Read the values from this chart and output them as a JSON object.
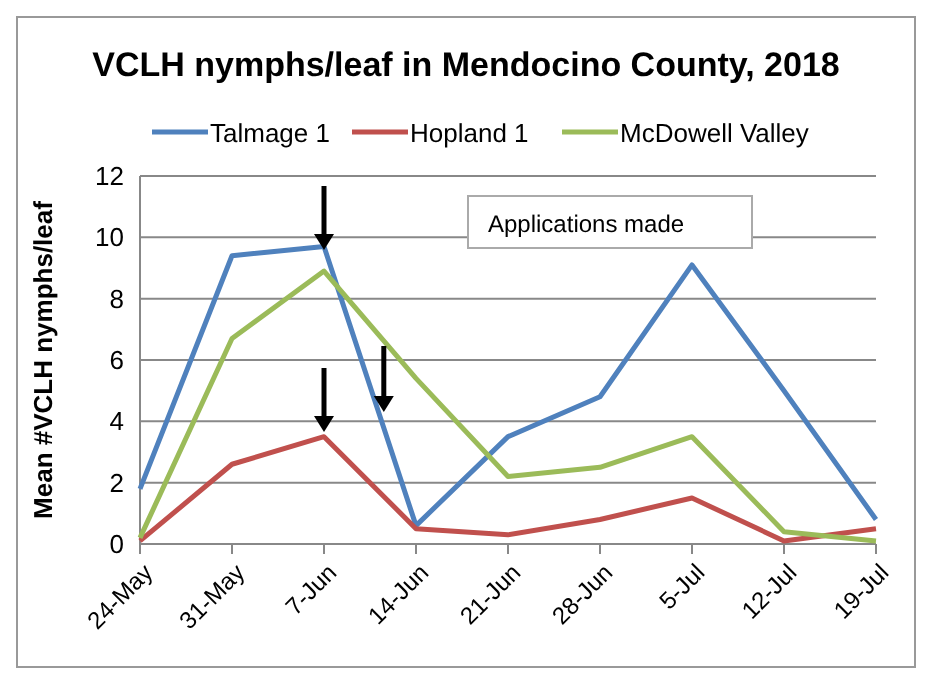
{
  "chart_data": {
    "type": "line",
    "title": "VCLH nymphs/leaf in Mendocino County, 2018",
    "ylabel": "Mean  #VCLH nymphs/leaf",
    "categories": [
      "24-May",
      "31-May",
      "7-Jun",
      "14-Jun",
      "21-Jun",
      "28-Jun",
      "5-Jul",
      "12-Jul",
      "19-Jul"
    ],
    "series": [
      {
        "name": "Talmage 1",
        "color": "#4f81bd",
        "values": [
          1.8,
          9.4,
          9.7,
          0.6,
          3.5,
          4.8,
          9.1,
          5.0,
          0.8
        ]
      },
      {
        "name": "Hopland 1",
        "color": "#c0504d",
        "values": [
          0.1,
          2.6,
          3.5,
          0.5,
          0.3,
          0.8,
          1.5,
          0.1,
          0.5
        ]
      },
      {
        "name": "McDowell Valley",
        "color": "#9bbb59",
        "values": [
          0.2,
          6.7,
          8.9,
          5.4,
          2.2,
          2.5,
          3.5,
          0.4,
          0.1
        ]
      }
    ],
    "ylim": [
      0,
      12
    ],
    "yticks": [
      0,
      2,
      4,
      6,
      8,
      10,
      12
    ],
    "grid": "y",
    "legend": "top",
    "marker": "none",
    "line_style": "solid",
    "annotations": [
      "Applications made"
    ]
  }
}
